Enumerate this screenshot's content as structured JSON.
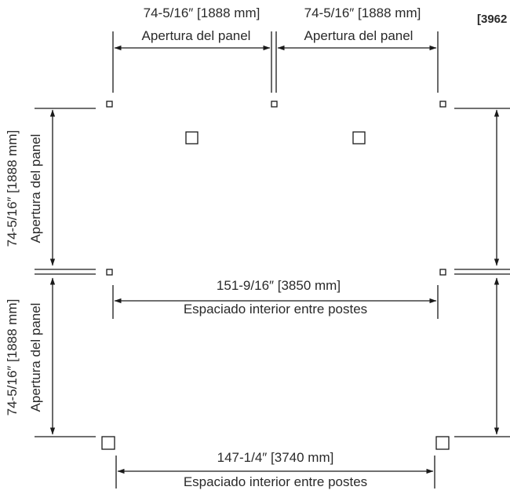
{
  "corner_label": "[3962",
  "dimensions": {
    "top_left": {
      "measure": "74-5/16″ [1888 mm]",
      "label": "Apertura del panel"
    },
    "top_right": {
      "measure": "74-5/16″ [1888 mm]",
      "label": "Apertura del panel"
    },
    "middle": {
      "measure": "151-9/16″ [3850 mm]",
      "label": "Espaciado interior entre postes"
    },
    "bottom": {
      "measure": "147-1/4″ [3740 mm]",
      "label": "Espaciado interior entre postes"
    },
    "left_upper": {
      "measure": "74-5/16″ [1888 mm]",
      "label": "Apertura del panel"
    },
    "left_lower": {
      "measure": "74-5/16″ [1888 mm]",
      "label": "Apertura del panel"
    }
  }
}
